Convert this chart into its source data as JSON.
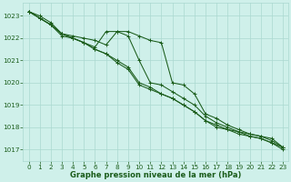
{
  "series": [
    {
      "x": [
        0,
        1,
        2,
        3,
        4,
        5,
        6,
        7,
        8,
        9,
        10,
        11,
        12,
        13,
        14,
        15,
        16,
        17,
        18,
        19,
        20,
        21,
        22,
        23
      ],
      "y": [
        1023.2,
        1023.0,
        1022.7,
        1022.2,
        1022.1,
        1022.0,
        1021.9,
        1021.7,
        1022.3,
        1022.3,
        1022.1,
        1021.9,
        1021.8,
        1020.0,
        1019.9,
        1019.5,
        1018.6,
        1018.4,
        1018.1,
        1017.9,
        1017.7,
        1017.6,
        1017.5,
        1017.1
      ]
    },
    {
      "x": [
        0,
        1,
        2,
        3,
        4,
        5,
        6,
        7,
        8,
        9,
        10,
        11,
        12,
        13,
        14,
        15,
        16,
        17,
        18,
        19,
        20,
        21,
        22,
        23
      ],
      "y": [
        1023.2,
        1022.9,
        1022.6,
        1022.2,
        1022.0,
        1021.8,
        1021.6,
        1022.3,
        1022.3,
        1022.1,
        1021.0,
        1020.0,
        1019.9,
        1019.6,
        1019.3,
        1019.0,
        1018.5,
        1018.2,
        1018.0,
        1017.8,
        1017.7,
        1017.6,
        1017.4,
        1017.1
      ]
    },
    {
      "x": [
        0,
        1,
        2,
        3,
        4,
        5,
        6,
        7,
        8,
        9,
        10,
        11,
        12,
        13,
        14,
        15,
        16,
        17,
        18,
        19,
        20,
        21,
        22,
        23
      ],
      "y": [
        1023.2,
        1022.9,
        1022.6,
        1022.1,
        1022.0,
        1021.8,
        1021.5,
        1021.3,
        1021.0,
        1020.7,
        1020.0,
        1019.8,
        1019.5,
        1019.3,
        1019.0,
        1018.7,
        1018.3,
        1018.1,
        1017.9,
        1017.8,
        1017.6,
        1017.5,
        1017.3,
        1017.1
      ]
    },
    {
      "x": [
        0,
        1,
        2,
        3,
        4,
        5,
        6,
        7,
        8,
        9,
        10,
        11,
        12,
        13,
        14,
        15,
        16,
        17,
        18,
        19,
        20,
        21,
        22,
        23
      ],
      "y": [
        1023.2,
        1022.9,
        1022.6,
        1022.2,
        1022.0,
        1021.8,
        1021.5,
        1021.3,
        1020.9,
        1020.6,
        1019.9,
        1019.7,
        1019.5,
        1019.3,
        1019.0,
        1018.7,
        1018.3,
        1018.0,
        1017.9,
        1017.7,
        1017.6,
        1017.5,
        1017.3,
        1017.0
      ]
    }
  ],
  "line_color": "#1a5c1a",
  "marker_color": "#1a5c1a",
  "background_color": "#cff0ea",
  "grid_color": "#aad8d0",
  "tick_color": "#1a5c1a",
  "label_color": "#1a5c1a",
  "xlabel": "Graphe pression niveau de la mer (hPa)",
  "xlim": [
    -0.5,
    23.5
  ],
  "ylim": [
    1016.5,
    1023.6
  ],
  "yticks": [
    1017,
    1018,
    1019,
    1020,
    1021,
    1022,
    1023
  ],
  "xticks": [
    0,
    1,
    2,
    3,
    4,
    5,
    6,
    7,
    8,
    9,
    10,
    11,
    12,
    13,
    14,
    15,
    16,
    17,
    18,
    19,
    20,
    21,
    22,
    23
  ],
  "linewidth": 0.75,
  "markersize": 2.8,
  "xlabel_fontsize": 6.0,
  "tick_fontsize": 5.2
}
